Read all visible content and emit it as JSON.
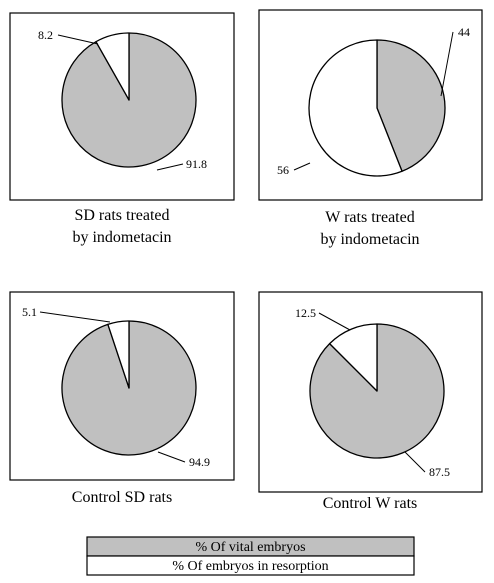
{
  "chart_data": [
    {
      "type": "pie",
      "caption": [
        "SD rats treated",
        "by indometacin"
      ],
      "slices": [
        {
          "value": 91.8,
          "label": "91.8",
          "color": "#c0c0c0"
        },
        {
          "value": 8.2,
          "label": "8.2",
          "color": "#ffffff"
        }
      ]
    },
    {
      "type": "pie",
      "caption": [
        "W rats treated",
        "by indometacin"
      ],
      "slices": [
        {
          "value": 44,
          "label": "44",
          "color": "#c0c0c0"
        },
        {
          "value": 56,
          "label": "56",
          "color": "#ffffff"
        }
      ]
    },
    {
      "type": "pie",
      "caption": [
        "Control SD rats"
      ],
      "slices": [
        {
          "value": 94.9,
          "label": "94.9",
          "color": "#c0c0c0"
        },
        {
          "value": 5.1,
          "label": "5.1",
          "color": "#ffffff"
        }
      ]
    },
    {
      "type": "pie",
      "caption": [
        "Control W rats"
      ],
      "slices": [
        {
          "value": 87.5,
          "label": "87.5",
          "color": "#c0c0c0"
        },
        {
          "value": 12.5,
          "label": "12.5",
          "color": "#ffffff"
        }
      ]
    }
  ],
  "legend": {
    "items": [
      {
        "label": "% Of vital embryos",
        "color": "#c0c0c0"
      },
      {
        "label": "% Of embryos in resorption",
        "color": "#ffffff"
      }
    ]
  }
}
